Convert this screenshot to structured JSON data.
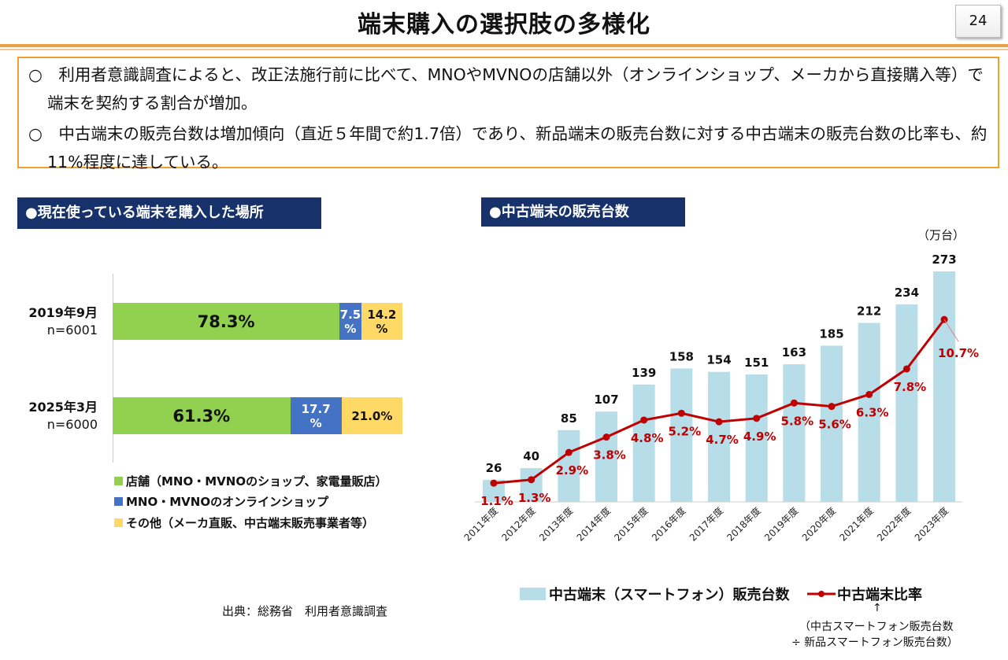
{
  "title": "端末購入の選択肢の多様化",
  "page_number": "24",
  "summary": [
    "○　利用者意識調査によると、改正法施行前に比べて、MNOやMVNOの店舗以外（オンラインショップ、メーカから直接購入等）で端末を契約する割合が増加。",
    "○　中古端末の販売台数は増加傾向（直近５年間で約1.7倍）であり、新品端末の販売台数に対する中古端末の販売台数の比率も、約11%程度に達している。"
  ],
  "source": "出典：総務省　利用者意識調査",
  "colors": {
    "store": "#92d050",
    "online": "#4472c4",
    "other": "#ffd966",
    "bar": "#b7dde8",
    "line": "#c00000",
    "header": "#17326b",
    "accent": "#f0a030"
  },
  "chart_data": [
    {
      "type": "bar",
      "orientation": "horizontal",
      "stacked": true,
      "title": "●現在使っている端末を購入した場所",
      "categories": [
        {
          "label": "2019年9月",
          "n": "n=6001"
        },
        {
          "label": "2025年3月",
          "n": "n=6000"
        }
      ],
      "series": [
        {
          "name": "店舗（MNO・MVNOのショップ、家電量販店）",
          "values": [
            78.3,
            61.3
          ],
          "labels": [
            "78.3%",
            "61.3%"
          ],
          "color": "#92d050"
        },
        {
          "name": "MNO・MVNOのオンラインショップ",
          "values": [
            7.5,
            17.7
          ],
          "labels": [
            "7.5 %",
            "17.7 %"
          ],
          "color": "#4472c4"
        },
        {
          "name": "その他（メーカ直販、中古端末販売事業者等）",
          "values": [
            14.2,
            21.0
          ],
          "labels": [
            "14.2 %",
            "21.0%"
          ],
          "color": "#ffd966"
        }
      ],
      "xlim": [
        0,
        100
      ],
      "legend": "bottom"
    },
    {
      "type": "bar+line",
      "title": "●中古端末の販売台数",
      "unit": "（万台）",
      "categories": [
        "2011年度",
        "2012年度",
        "2013年度",
        "2014年度",
        "2015年度",
        "2016年度",
        "2017年度",
        "2018年度",
        "2019年度",
        "2020年度",
        "2021年度",
        "2022年度",
        "2023年度"
      ],
      "series": [
        {
          "name": "中古端末（スマートフォン）販売台数",
          "type": "bar",
          "values": [
            26,
            40,
            85,
            107,
            139,
            158,
            154,
            151,
            163,
            185,
            212,
            234,
            273
          ],
          "color": "#b7dde8"
        },
        {
          "name": "中古端末比率",
          "type": "line",
          "values": [
            1.1,
            1.3,
            2.9,
            3.8,
            4.8,
            5.2,
            4.7,
            4.9,
            5.8,
            5.6,
            6.3,
            7.8,
            10.7
          ],
          "color": "#c00000"
        }
      ],
      "legend": "bottom",
      "note_arrow": "↑",
      "note": [
        "（中古スマートフォン販売台数",
        "÷ 新品スマートフォン販売台数）"
      ]
    }
  ]
}
